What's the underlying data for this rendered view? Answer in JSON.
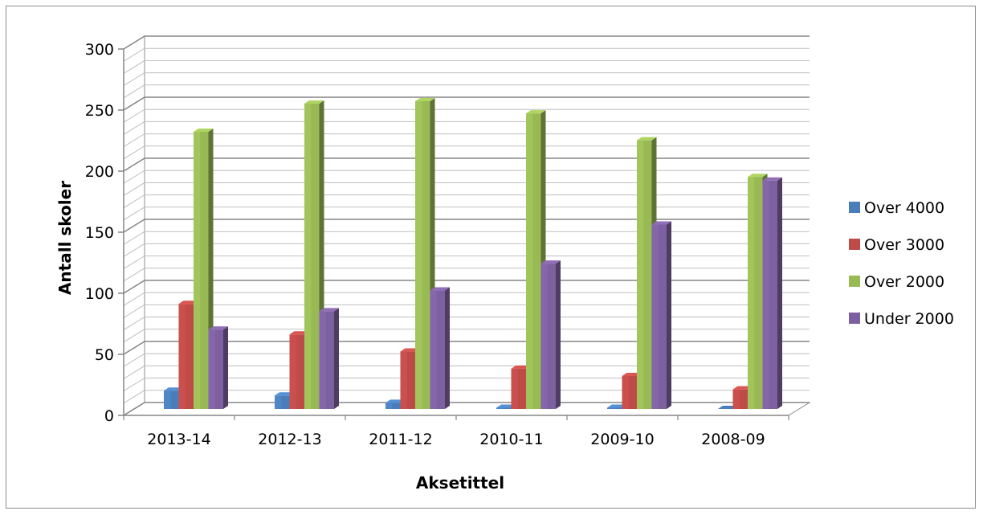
{
  "chart_data": {
    "type": "bar",
    "title": "",
    "xlabel": "Aksetittel",
    "ylabel": "Antall skoler",
    "ylim": [
      0,
      300
    ],
    "yticks": [
      0,
      50,
      100,
      150,
      200,
      250,
      300
    ],
    "grid": true,
    "legend_position": "right",
    "categories": [
      "2013-14",
      "2012-13",
      "2011-12",
      "2010-11",
      "2009-10",
      "2008-09"
    ],
    "series": [
      {
        "name": "Over 4000",
        "color": "#4a7ebb",
        "values": [
          15,
          11,
          5,
          1,
          1,
          0
        ]
      },
      {
        "name": "Over 3000",
        "color": "#be4b48",
        "values": [
          86,
          61,
          47,
          33,
          27,
          16
        ]
      },
      {
        "name": "Over 2000",
        "color": "#98b954",
        "values": [
          227,
          250,
          252,
          242,
          220,
          190
        ]
      },
      {
        "name": "Under 2000",
        "color": "#7d60a0",
        "values": [
          65,
          80,
          97,
          119,
          151,
          187
        ]
      }
    ]
  }
}
